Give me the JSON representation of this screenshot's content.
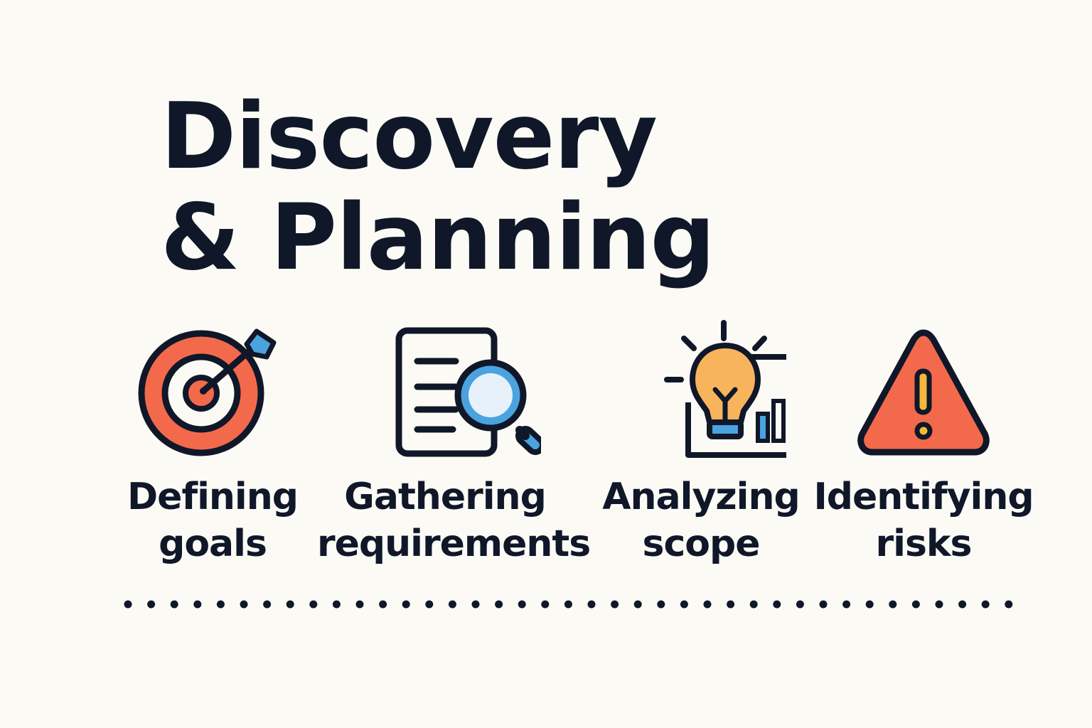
{
  "title": {
    "line1": "Discovery",
    "line2": "& Planning"
  },
  "steps": [
    {
      "icon": "target-icon",
      "line1": "Defining",
      "line2": "goals"
    },
    {
      "icon": "document-search-icon",
      "line1": "Gathering",
      "line2": "requirements"
    },
    {
      "icon": "lightbulb-chart-icon",
      "line1": "Analyzing",
      "line2": "scope"
    },
    {
      "icon": "warning-icon",
      "line1": "Identifying",
      "line2": "risks"
    }
  ],
  "colors": {
    "background": "#fcfaf5",
    "ink": "#0f1729",
    "coral": "#f26a4b",
    "blue": "#4aa3df",
    "light_blue": "#e6f1fa",
    "bulb_orange": "#f8b45c",
    "warning_yellow": "#f5b83d"
  }
}
